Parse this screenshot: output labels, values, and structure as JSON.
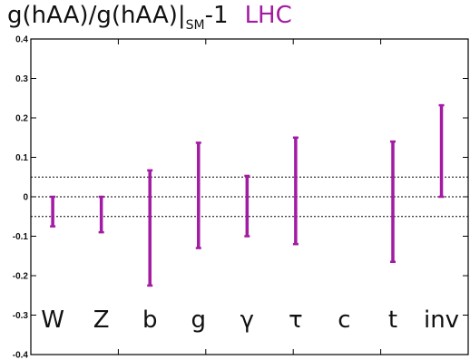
{
  "title": {
    "main": "g(hAA)/g(hAA)|",
    "subscript": "SM",
    "suffix": "-1",
    "tag": "LHC"
  },
  "chart_data": {
    "type": "scatter",
    "title": "g(hAA)/g(hAA)|SM-1  LHC",
    "xlabel": "",
    "ylabel": "",
    "ylim": [
      -0.4,
      0.4
    ],
    "yticks": [
      "0.4",
      "0.3",
      "0.2",
      "0.1",
      "0",
      "-0.1",
      "-0.2",
      "-0.3",
      "-0.4"
    ],
    "categories": [
      "W",
      "Z",
      "b",
      "g",
      "γ",
      "τ",
      "c",
      "t",
      "inv"
    ],
    "ranges": [
      {
        "category": "W",
        "low": -0.075,
        "high": 0.0
      },
      {
        "category": "Z",
        "low": -0.09,
        "high": 0.0
      },
      {
        "category": "b",
        "low": -0.225,
        "high": 0.067
      },
      {
        "category": "g",
        "low": -0.13,
        "high": 0.137
      },
      {
        "category": "γ",
        "low": -0.1,
        "high": 0.053
      },
      {
        "category": "τ",
        "low": -0.12,
        "high": 0.15
      },
      {
        "category": "c",
        "low": null,
        "high": null
      },
      {
        "category": "t",
        "low": -0.165,
        "high": 0.14
      },
      {
        "category": "inv",
        "low": 0.0,
        "high": 0.232
      }
    ],
    "reference_lines": [
      0.05,
      0.0,
      -0.05
    ],
    "series_color": "#a31aa3",
    "grid": false
  }
}
